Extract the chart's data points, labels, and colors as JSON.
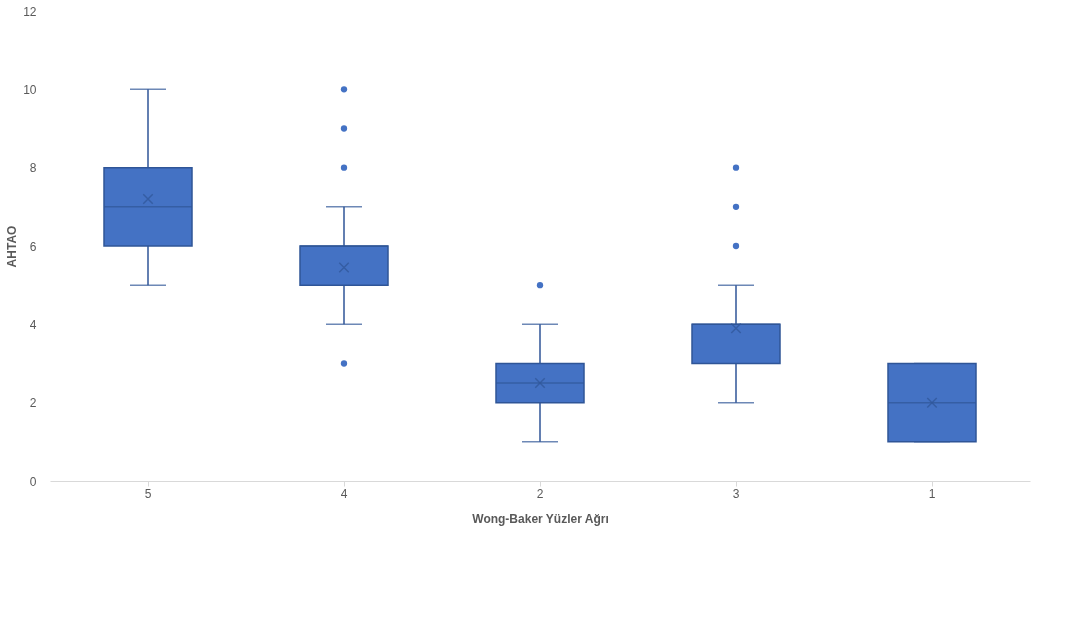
{
  "chart_data": {
    "type": "box",
    "xlabel": "Wong-Baker Yüzler Ağrı",
    "ylabel": "AHTAO",
    "categories": [
      "5",
      "4",
      "2",
      "3",
      "1"
    ],
    "color": "#4472c4",
    "ylim": [
      0,
      12
    ],
    "yticks": [
      0,
      2,
      4,
      6,
      8,
      10,
      12
    ],
    "boxes": [
      {
        "low": 5,
        "q1": 6,
        "median": 7,
        "q3": 8,
        "high": 10,
        "mean": 7.2
      },
      {
        "low": 4,
        "q1": 5,
        "median": 6,
        "q3": 6,
        "high": 7,
        "mean": 5.45,
        "outliers": [
          3,
          8,
          9,
          10
        ]
      },
      {
        "low": 1,
        "q1": 2,
        "median": 2.5,
        "q3": 3,
        "high": 4,
        "mean": 2.5,
        "outliers": [
          5
        ]
      },
      {
        "low": 2,
        "q1": 3,
        "median": 4,
        "q3": 4,
        "high": 5,
        "mean": 3.9,
        "outliers": [
          6,
          7,
          8
        ]
      },
      {
        "low": 1,
        "q1": 1,
        "median": 2,
        "q3": 3,
        "high": 3,
        "mean": 2
      }
    ]
  }
}
